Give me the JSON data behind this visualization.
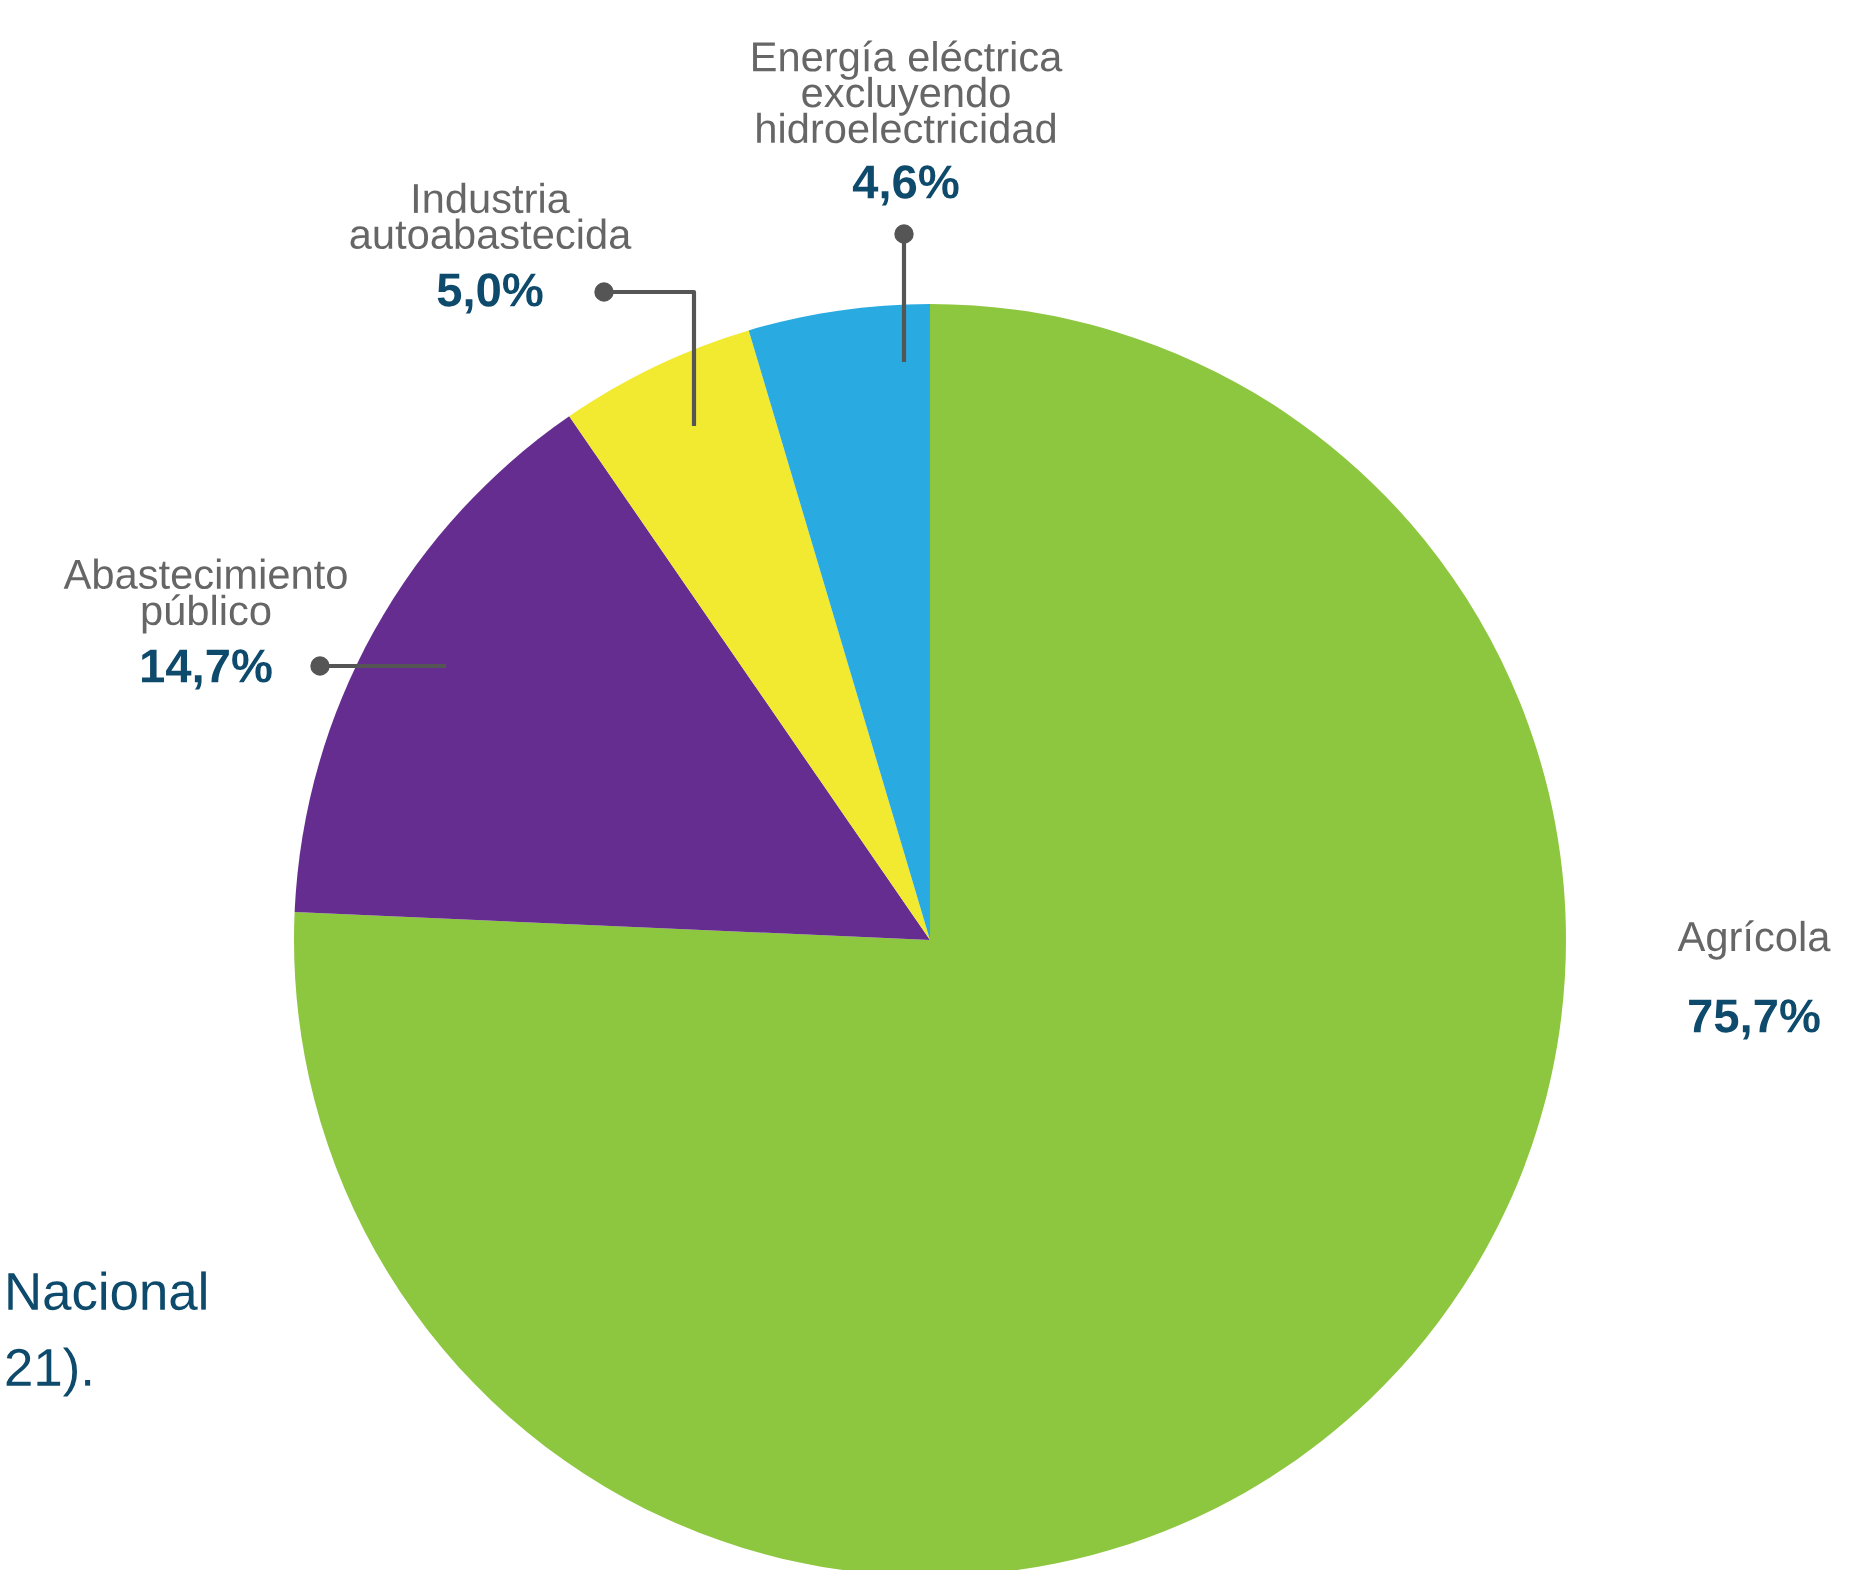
{
  "chart_data": {
    "type": "pie",
    "categories": [
      "Agrícola",
      "Abastecimiento público",
      "Industria autoabastecida",
      "Energía eléctrica excluyendo hidroelectricidad"
    ],
    "values": [
      75.7,
      14.7,
      5.0,
      4.6
    ],
    "value_labels": [
      "75,7%",
      "14,7%",
      "5,0%",
      "4,6%"
    ],
    "colors": [
      "#8dc63f",
      "#662d91",
      "#f2e931",
      "#29abe2"
    ],
    "annotations": [
      "Nacional",
      "21)."
    ]
  }
}
